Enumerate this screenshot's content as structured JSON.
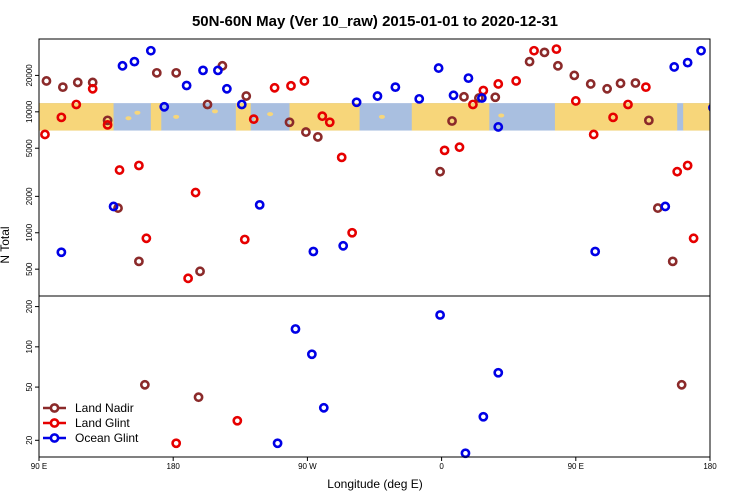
{
  "chart_data": {
    "type": "scatter",
    "title": "50N-60N May (Ver 10_raw)   2015-01-01 to 2020-12-31",
    "xlabel": "Longitude (deg E)",
    "ylabel": "N Total",
    "x_ticks": [
      {
        "value": 90,
        "label": "90 E"
      },
      {
        "value": 180,
        "label": "180"
      },
      {
        "value": 270,
        "label": "90 W"
      },
      {
        "value": 360,
        "label": "0"
      },
      {
        "value": 450,
        "label": "90 E"
      },
      {
        "value": 540,
        "label": "180"
      }
    ],
    "xlim": [
      90,
      540
    ],
    "top_panel": {
      "scale": "log",
      "ylim": [
        300,
        40000
      ],
      "y_ticks": [
        {
          "value": 500,
          "label": "500"
        },
        {
          "value": 1000,
          "label": "1000"
        },
        {
          "value": 2000,
          "label": "2000"
        },
        {
          "value": 5000,
          "label": "5000"
        },
        {
          "value": 10000,
          "label": "10000"
        },
        {
          "value": 20000,
          "label": "20000"
        }
      ],
      "map_band": {
        "ymin": 7000,
        "ymax": 11800,
        "ocean_color": "#a9bfe0",
        "land_color": "#f7d67a"
      }
    },
    "bottom_panel": {
      "scale": "log",
      "ylim": [
        15,
        240
      ],
      "y_ticks": [
        {
          "value": 20,
          "label": "20"
        },
        {
          "value": 50,
          "label": "50"
        },
        {
          "value": 100,
          "label": "100"
        },
        {
          "value": 200,
          "label": "200"
        }
      ]
    },
    "legend_position": "bottom-left",
    "series": [
      {
        "name": "Land Nadir",
        "color": "#8b2a2a",
        "top": [
          [
            95,
            18000
          ],
          [
            106,
            16000
          ],
          [
            116,
            17500
          ],
          [
            126,
            17500
          ],
          [
            136,
            8500
          ],
          [
            143,
            1600
          ],
          [
            157,
            580
          ],
          [
            169,
            21000
          ],
          [
            182,
            21000
          ],
          [
            198,
            480
          ],
          [
            203,
            11500
          ],
          [
            213,
            24000
          ],
          [
            229,
            13500
          ],
          [
            258,
            8200
          ],
          [
            269,
            6800
          ],
          [
            277,
            6200
          ],
          [
            359,
            3200
          ],
          [
            367,
            8400
          ],
          [
            375,
            13300
          ],
          [
            385,
            13000
          ],
          [
            396,
            13200
          ],
          [
            419,
            26000
          ],
          [
            429,
            31000
          ],
          [
            438,
            24000
          ],
          [
            449,
            20000
          ],
          [
            460,
            17000
          ],
          [
            471,
            15500
          ],
          [
            480,
            17200
          ],
          [
            490,
            17300
          ],
          [
            499,
            8500
          ],
          [
            505,
            1600
          ],
          [
            515,
            580
          ]
        ],
        "bottom": [
          [
            161,
            52
          ],
          [
            197,
            42
          ],
          [
            521,
            52
          ]
        ]
      },
      {
        "name": "Land Glint",
        "color": "#e60000",
        "top": [
          [
            94,
            6500
          ],
          [
            105,
            9000
          ],
          [
            115,
            11500
          ],
          [
            126,
            15500
          ],
          [
            136,
            7800
          ],
          [
            144,
            3300
          ],
          [
            157,
            3600
          ],
          [
            162,
            900
          ],
          [
            190,
            420
          ],
          [
            195,
            2150
          ],
          [
            228,
            880
          ],
          [
            234,
            8700
          ],
          [
            248,
            15800
          ],
          [
            259,
            16400
          ],
          [
            268,
            18000
          ],
          [
            280,
            9200
          ],
          [
            285,
            8200
          ],
          [
            293,
            4200
          ],
          [
            300,
            1000
          ],
          [
            362,
            4800
          ],
          [
            372,
            5100
          ],
          [
            381,
            11500
          ],
          [
            388,
            15000
          ],
          [
            398,
            17000
          ],
          [
            410,
            18000
          ],
          [
            422,
            32000
          ],
          [
            437,
            33000
          ],
          [
            450,
            12300
          ],
          [
            462,
            6500
          ],
          [
            475,
            9000
          ],
          [
            485,
            11500
          ],
          [
            497,
            16000
          ],
          [
            518,
            3200
          ],
          [
            525,
            3600
          ],
          [
            529,
            900
          ]
        ],
        "bottom": [
          [
            182,
            19
          ],
          [
            223,
            28
          ]
        ]
      },
      {
        "name": "Ocean Glint",
        "color": "#0000e6",
        "top": [
          [
            105,
            690
          ],
          [
            140,
            1650
          ],
          [
            146,
            24000
          ],
          [
            154,
            26000
          ],
          [
            165,
            32000
          ],
          [
            174,
            11000
          ],
          [
            189,
            16500
          ],
          [
            200,
            22000
          ],
          [
            210,
            22000
          ],
          [
            216,
            15500
          ],
          [
            226,
            11500
          ],
          [
            238,
            1700
          ],
          [
            274,
            700
          ],
          [
            294,
            780
          ],
          [
            303,
            12000
          ],
          [
            317,
            13500
          ],
          [
            329,
            16000
          ],
          [
            345,
            12800
          ],
          [
            358,
            23000
          ],
          [
            368,
            13700
          ],
          [
            378,
            19000
          ],
          [
            387,
            13000
          ],
          [
            398,
            7500
          ],
          [
            463,
            700
          ],
          [
            510,
            1650
          ],
          [
            516,
            23500
          ],
          [
            525,
            25500
          ],
          [
            534,
            32000
          ],
          [
            542,
            10800
          ]
        ],
        "bottom": [
          [
            250,
            19
          ],
          [
            262,
            136
          ],
          [
            273,
            88
          ],
          [
            281,
            35
          ],
          [
            359,
            173
          ],
          [
            376,
            16
          ],
          [
            388,
            30
          ],
          [
            398,
            64
          ]
        ]
      }
    ]
  }
}
